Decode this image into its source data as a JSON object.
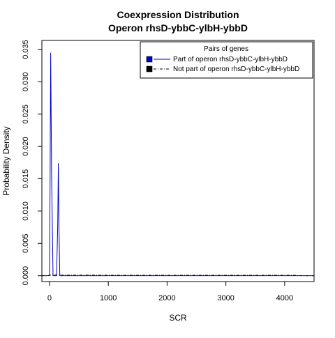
{
  "chart_data": {
    "type": "line",
    "title_lines": [
      "Coexpression Distribution",
      "Operon rhsD-ybbC-ylbH-ybbD"
    ],
    "xlabel": "SCR",
    "ylabel": "Probability Density",
    "xlim": [
      -130,
      4500
    ],
    "ylim": [
      -0.0009,
      0.0364
    ],
    "x_ticks": [
      0,
      1000,
      2000,
      3000,
      4000
    ],
    "x_tick_labels": [
      "0",
      "1000",
      "2000",
      "3000",
      "4000"
    ],
    "y_ticks": [
      0.0,
      0.005,
      0.01,
      0.015,
      0.02,
      0.025,
      0.03,
      0.035
    ],
    "y_tick_labels": [
      "0.000",
      "0.005",
      "0.010",
      "0.015",
      "0.020",
      "0.025",
      "0.030",
      "0.035"
    ],
    "grid": false,
    "legend": {
      "title": "Pairs of genes",
      "position": "top-right"
    },
    "series": [
      {
        "name": "Part of operon rhsD-ybbC-ylbH-ybbD",
        "color": "#0000cc",
        "line_style": "solid",
        "x": [
          -130,
          0,
          10,
          20,
          35,
          60,
          80,
          100,
          120,
          140,
          150,
          160,
          175,
          190,
          300,
          1000,
          2000,
          3000,
          4000,
          4500
        ],
        "y": [
          0.0,
          0.0,
          0.015,
          0.0345,
          0.016,
          0.0,
          0.0,
          0.0,
          0.0,
          0.008,
          0.0174,
          0.008,
          0.0,
          0.0,
          0.0,
          0.0,
          0.0,
          0.0,
          0.0,
          0.0
        ]
      },
      {
        "name": "Not part of operon rhsD-ybbC-ylbH-ybbD",
        "color": "#000000",
        "line_style": "dashdot",
        "x": [
          -130,
          -40,
          0,
          50,
          100,
          160,
          200,
          500,
          1000,
          2000,
          3000,
          4000,
          4150,
          4300,
          4500
        ],
        "y": [
          0.0,
          0.0,
          8e-05,
          0.00012,
          0.00012,
          0.00012,
          0.0001,
          0.0001,
          9e-05,
          9e-05,
          9e-05,
          9e-05,
          8e-05,
          0.0,
          0.0
        ]
      }
    ]
  }
}
